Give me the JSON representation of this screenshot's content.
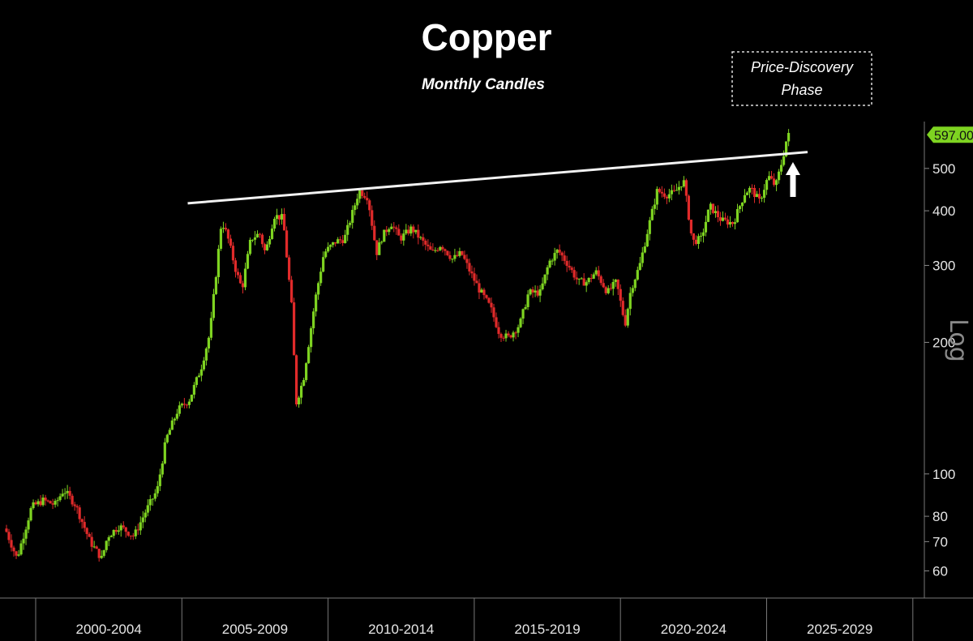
{
  "chart_data": {
    "type": "candlestick",
    "title": "Copper",
    "subtitle": "Monthly Candles",
    "annotation": {
      "line1": "Price-Discovery",
      "line2": "Phase"
    },
    "scale_label": "Log",
    "y_scale": "log",
    "ylim": [
      52,
      640
    ],
    "y_ticks": [
      {
        "value": 60,
        "label": "60"
      },
      {
        "value": 70,
        "label": "70"
      },
      {
        "value": 80,
        "label": "80"
      },
      {
        "value": 100,
        "label": "100"
      },
      {
        "value": 200,
        "label": "200"
      },
      {
        "value": 300,
        "label": "300"
      },
      {
        "value": 400,
        "label": "400"
      },
      {
        "value": 500,
        "label": "500"
      }
    ],
    "last_price": {
      "value": 597,
      "label": "597.00"
    },
    "x_range": [
      1999.0,
      2030.0
    ],
    "x_periods": [
      "2000-2004",
      "2005-2009",
      "2010-2014",
      "2015-2019",
      "2020-2024",
      "2025-2029"
    ],
    "x_dividers": [
      2000,
      2005,
      2010,
      2015,
      2020,
      2025,
      2030
    ],
    "resistance_line": {
      "start": {
        "x": 2005.2,
        "y": 416
      },
      "end": {
        "x": 2026.4,
        "y": 545
      }
    },
    "up_arrow_x": 2025.9,
    "colors": {
      "up": "#7ed321",
      "down": "#e02a2a",
      "line": "#f2f2f2",
      "last_price_bg": "#7ed321"
    },
    "anchors": [
      [
        1999.0,
        75
      ],
      [
        1999.4,
        64
      ],
      [
        1999.9,
        84
      ],
      [
        2000.3,
        87
      ],
      [
        2000.7,
        85
      ],
      [
        2001.0,
        92
      ],
      [
        2001.4,
        85
      ],
      [
        2001.9,
        70
      ],
      [
        2002.3,
        64
      ],
      [
        2002.5,
        72
      ],
      [
        2002.9,
        76
      ],
      [
        2003.4,
        72
      ],
      [
        2003.8,
        82
      ],
      [
        2004.2,
        92
      ],
      [
        2004.5,
        120
      ],
      [
        2004.9,
        140
      ],
      [
        2005.3,
        148
      ],
      [
        2005.7,
        175
      ],
      [
        2006.0,
        210
      ],
      [
        2006.4,
        380
      ],
      [
        2006.6,
        350
      ],
      [
        2006.9,
        290
      ],
      [
        2007.1,
        265
      ],
      [
        2007.4,
        345
      ],
      [
        2007.7,
        355
      ],
      [
        2007.9,
        320
      ],
      [
        2008.2,
        390
      ],
      [
        2008.5,
        385
      ],
      [
        2008.8,
        240
      ],
      [
        2008.95,
        145
      ],
      [
        2009.2,
        165
      ],
      [
        2009.6,
        250
      ],
      [
        2009.9,
        320
      ],
      [
        2010.3,
        340
      ],
      [
        2010.6,
        345
      ],
      [
        2010.9,
        400
      ],
      [
        2011.1,
        445
      ],
      [
        2011.4,
        430
      ],
      [
        2011.7,
        320
      ],
      [
        2011.9,
        350
      ],
      [
        2012.2,
        375
      ],
      [
        2012.5,
        345
      ],
      [
        2012.9,
        365
      ],
      [
        2013.2,
        345
      ],
      [
        2013.6,
        320
      ],
      [
        2013.9,
        335
      ],
      [
        2014.3,
        310
      ],
      [
        2014.6,
        320
      ],
      [
        2014.9,
        290
      ],
      [
        2015.2,
        265
      ],
      [
        2015.6,
        240
      ],
      [
        2015.9,
        210
      ],
      [
        2016.2,
        205
      ],
      [
        2016.6,
        220
      ],
      [
        2016.9,
        260
      ],
      [
        2017.3,
        260
      ],
      [
        2017.6,
        305
      ],
      [
        2017.9,
        325
      ],
      [
        2018.2,
        305
      ],
      [
        2018.6,
        275
      ],
      [
        2018.9,
        275
      ],
      [
        2019.2,
        290
      ],
      [
        2019.6,
        260
      ],
      [
        2019.9,
        275
      ],
      [
        2020.2,
        220
      ],
      [
        2020.4,
        265
      ],
      [
        2020.7,
        300
      ],
      [
        2020.95,
        355
      ],
      [
        2021.3,
        445
      ],
      [
        2021.6,
        435
      ],
      [
        2021.9,
        440
      ],
      [
        2022.2,
        470
      ],
      [
        2022.5,
        340
      ],
      [
        2022.8,
        345
      ],
      [
        2023.1,
        410
      ],
      [
        2023.5,
        380
      ],
      [
        2023.9,
        375
      ],
      [
        2024.3,
        440
      ],
      [
        2024.5,
        450
      ],
      [
        2024.8,
        420
      ],
      [
        2025.1,
        480
      ],
      [
        2025.35,
        455
      ],
      [
        2025.6,
        530
      ],
      [
        2025.75,
        595
      ]
    ]
  }
}
